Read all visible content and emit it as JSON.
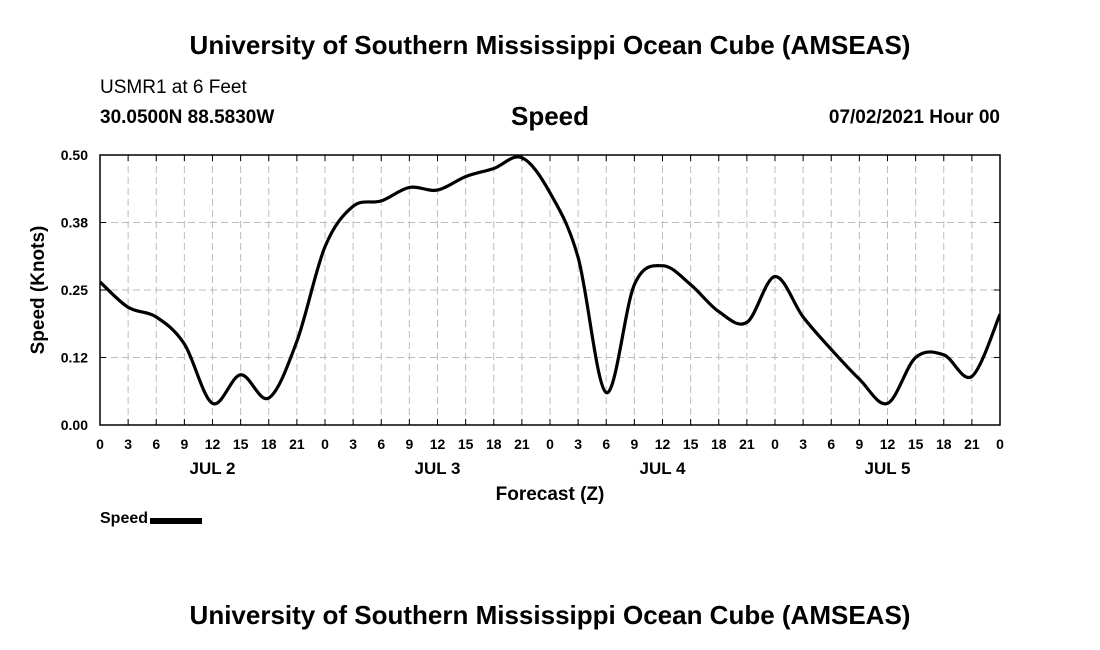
{
  "header": {
    "title": "University of Southern Mississippi Ocean Cube (AMSEAS)",
    "station": "USMR1 at 6 Feet",
    "coordinates": "30.0500N  88.5830W",
    "date": "07/02/2021 Hour 00"
  },
  "footer": {
    "title": "University of Southern Mississippi Ocean Cube (AMSEAS)"
  },
  "legend": {
    "label": "Speed"
  },
  "chart_data": {
    "type": "line",
    "title": "Speed",
    "xlabel": "Forecast (Z)",
    "ylabel": "Speed (Knots)",
    "ylim": [
      0,
      0.5
    ],
    "xlim": [
      0,
      96
    ],
    "y_ticks": [
      "0.00",
      "0.12",
      "0.25",
      "0.38",
      "0.50"
    ],
    "y_tick_values": [
      0,
      0.125,
      0.25,
      0.375,
      0.5
    ],
    "x_tick_labels": [
      "0",
      "3",
      "6",
      "9",
      "12",
      "15",
      "18",
      "21",
      "0",
      "3",
      "6",
      "9",
      "12",
      "15",
      "18",
      "21",
      "0",
      "3",
      "6",
      "9",
      "12",
      "15",
      "18",
      "21",
      "0",
      "3",
      "6",
      "9",
      "12",
      "15",
      "18",
      "21",
      "0"
    ],
    "day_labels": [
      {
        "label": "JUL 2",
        "hour": 12
      },
      {
        "label": "JUL 3",
        "hour": 36
      },
      {
        "label": "JUL 4",
        "hour": 60
      },
      {
        "label": "JUL 5",
        "hour": 84
      }
    ],
    "grid": true,
    "series": [
      {
        "name": "Speed",
        "color": "#000000",
        "x": [
          0,
          3,
          6,
          9,
          12,
          15,
          18,
          21,
          24,
          27,
          30,
          33,
          36,
          39,
          42,
          45,
          48,
          51,
          54,
          57,
          60,
          63,
          66,
          69,
          72,
          75,
          78,
          81,
          84,
          87,
          90,
          93,
          96
        ],
        "values": [
          0.265,
          0.218,
          0.2,
          0.15,
          0.04,
          0.093,
          0.05,
          0.155,
          0.33,
          0.405,
          0.415,
          0.44,
          0.435,
          0.46,
          0.475,
          0.495,
          0.43,
          0.31,
          0.06,
          0.26,
          0.295,
          0.26,
          0.21,
          0.19,
          0.275,
          0.2,
          0.14,
          0.085,
          0.04,
          0.125,
          0.13,
          0.09,
          0.205
        ]
      }
    ]
  }
}
